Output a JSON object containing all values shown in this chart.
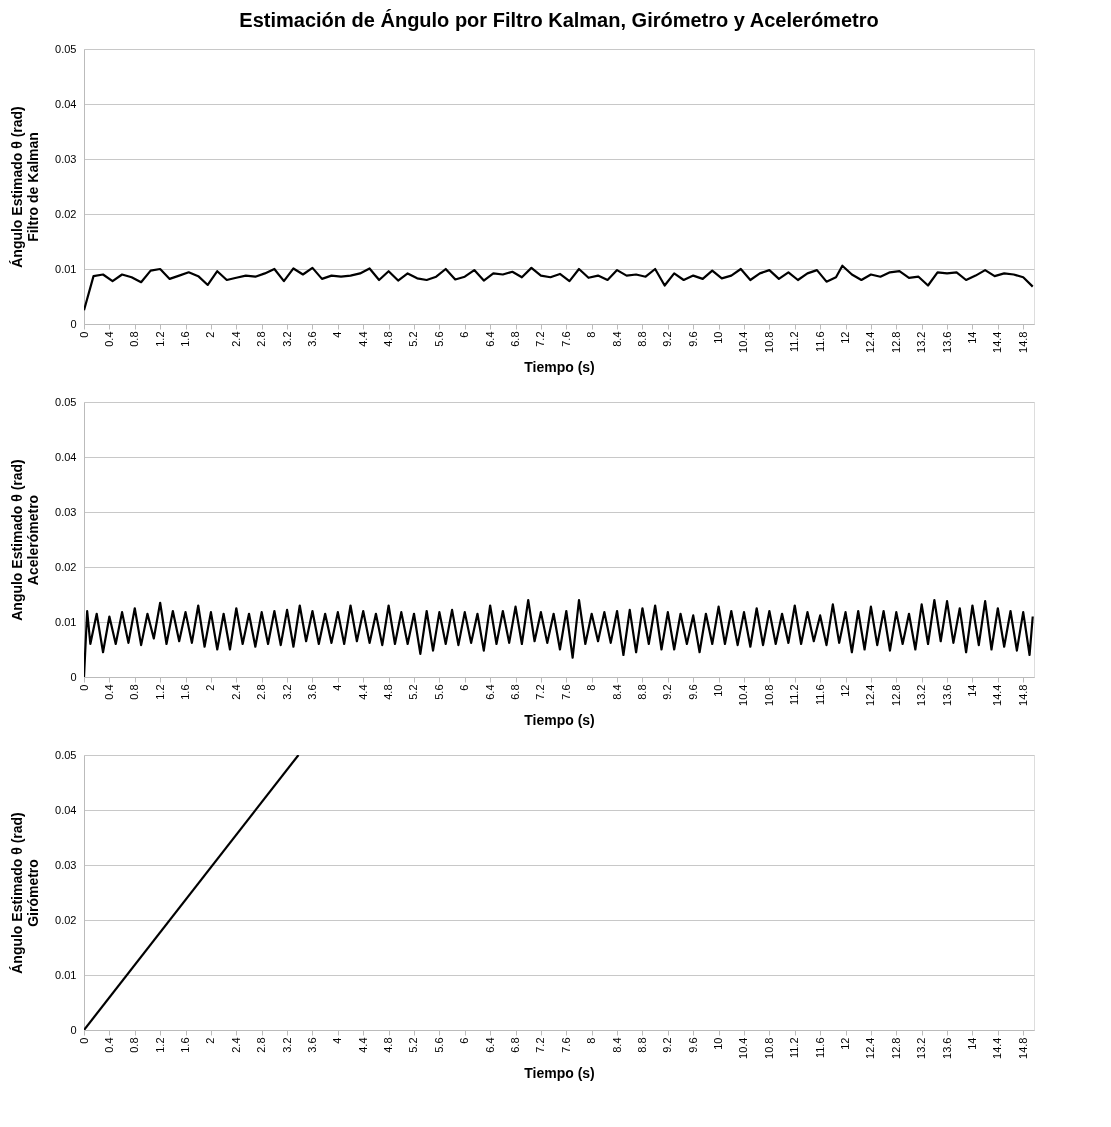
{
  "chart_data": [
    {
      "type": "line",
      "title": "Estimación de Ángulo por Filtro Kalman, Girómetro y Acelerómetro",
      "xlabel": "Tiempo (s)",
      "ylabel": "Ángulo Estimado θ (rad)\nFiltro de Kalman",
      "xlim": [
        0,
        14.97
      ],
      "ylim": [
        0,
        0.05
      ],
      "yticks": [
        0,
        0.01,
        0.02,
        0.03,
        0.04,
        0.05
      ],
      "xticks": [
        0,
        0.4,
        0.8,
        1.2,
        1.6,
        2,
        2.4,
        2.8,
        3.2,
        3.6,
        4,
        4.4,
        4.8,
        5.2,
        5.6,
        6,
        6.4,
        6.8,
        7.2,
        7.6,
        8,
        8.4,
        8.8,
        9.2,
        9.6,
        10,
        10.4,
        10.8,
        11.2,
        11.6,
        12,
        12.4,
        12.8,
        13.2,
        13.6,
        14,
        14.4,
        14.8
      ],
      "grid": "y",
      "series": [
        {
          "color": "#000000",
          "x": [
            0,
            0.15,
            0.3,
            0.45,
            0.6,
            0.75,
            0.9,
            1.05,
            1.2,
            1.35,
            1.5,
            1.65,
            1.8,
            1.95,
            2.1,
            2.25,
            2.4,
            2.55,
            2.7,
            2.85,
            3.0,
            3.15,
            3.3,
            3.45,
            3.6,
            3.75,
            3.9,
            4.05,
            4.2,
            4.35,
            4.5,
            4.65,
            4.8,
            4.95,
            5.1,
            5.25,
            5.4,
            5.55,
            5.7,
            5.85,
            6.0,
            6.15,
            6.3,
            6.45,
            6.6,
            6.75,
            6.9,
            7.05,
            7.2,
            7.35,
            7.5,
            7.65,
            7.8,
            7.95,
            8.1,
            8.25,
            8.4,
            8.55,
            8.7,
            8.85,
            9.0,
            9.15,
            9.3,
            9.45,
            9.6,
            9.75,
            9.9,
            10.05,
            10.2,
            10.35,
            10.5,
            10.65,
            10.8,
            10.95,
            11.1,
            11.25,
            11.4,
            11.55,
            11.7,
            11.85,
            11.95,
            12.1,
            12.25,
            12.4,
            12.55,
            12.7,
            12.85,
            13.0,
            13.15,
            13.3,
            13.45,
            13.6,
            13.75,
            13.9,
            14.05,
            14.2,
            14.35,
            14.5,
            14.65,
            14.8,
            14.95
          ],
          "values": [
            0.0025,
            0.0087,
            0.009,
            0.0078,
            0.009,
            0.0085,
            0.0076,
            0.0097,
            0.01,
            0.0082,
            0.0088,
            0.0094,
            0.0087,
            0.0071,
            0.0096,
            0.008,
            0.0084,
            0.0088,
            0.0086,
            0.0092,
            0.01,
            0.0078,
            0.0101,
            0.009,
            0.0102,
            0.0082,
            0.0088,
            0.0086,
            0.0088,
            0.0092,
            0.0101,
            0.008,
            0.0096,
            0.0079,
            0.0092,
            0.0083,
            0.008,
            0.0086,
            0.01,
            0.0081,
            0.0086,
            0.0098,
            0.0079,
            0.0092,
            0.009,
            0.0095,
            0.0085,
            0.0102,
            0.0088,
            0.0085,
            0.0091,
            0.0078,
            0.01,
            0.0084,
            0.0088,
            0.008,
            0.0098,
            0.0088,
            0.009,
            0.0086,
            0.01,
            0.007,
            0.0092,
            0.008,
            0.0088,
            0.0082,
            0.0097,
            0.0083,
            0.0088,
            0.01,
            0.008,
            0.0092,
            0.0098,
            0.0082,
            0.0094,
            0.008,
            0.0092,
            0.0098,
            0.0077,
            0.0085,
            0.0106,
            0.009,
            0.008,
            0.009,
            0.0086,
            0.0094,
            0.0096,
            0.0084,
            0.0086,
            0.007,
            0.0094,
            0.0092,
            0.0094,
            0.008,
            0.0088,
            0.0098,
            0.0087,
            0.0092,
            0.009,
            0.0085,
            0.0068
          ]
        }
      ]
    },
    {
      "type": "line",
      "xlabel": "Tiempo (s)",
      "ylabel": "Angulo Estimado θ (rad)\nAcelerómetro",
      "xlim": [
        0,
        14.97
      ],
      "ylim": [
        0,
        0.05
      ],
      "yticks": [
        0,
        0.01,
        0.02,
        0.03,
        0.04,
        0.05
      ],
      "xticks": [
        0,
        0.4,
        0.8,
        1.2,
        1.6,
        2,
        2.4,
        2.8,
        3.2,
        3.6,
        4,
        4.4,
        4.8,
        5.2,
        5.6,
        6,
        6.4,
        6.8,
        7.2,
        7.6,
        8,
        8.4,
        8.8,
        9.2,
        9.6,
        10,
        10.4,
        10.8,
        11.2,
        11.6,
        12,
        12.4,
        12.8,
        13.2,
        13.6,
        14,
        14.4,
        14.8
      ],
      "grid": "y",
      "series": [
        {
          "color": "#000000",
          "x": [
            0,
            0.05,
            0.1,
            0.2,
            0.3,
            0.4,
            0.5,
            0.6,
            0.7,
            0.8,
            0.9,
            1.0,
            1.1,
            1.2,
            1.3,
            1.4,
            1.5,
            1.6,
            1.7,
            1.8,
            1.9,
            2.0,
            2.1,
            2.2,
            2.3,
            2.4,
            2.5,
            2.6,
            2.7,
            2.8,
            2.9,
            3.0,
            3.1,
            3.2,
            3.3,
            3.4,
            3.5,
            3.6,
            3.7,
            3.8,
            3.9,
            4.0,
            4.1,
            4.2,
            4.3,
            4.4,
            4.5,
            4.6,
            4.7,
            4.8,
            4.9,
            5.0,
            5.1,
            5.2,
            5.3,
            5.4,
            5.5,
            5.6,
            5.7,
            5.8,
            5.9,
            6.0,
            6.1,
            6.2,
            6.3,
            6.4,
            6.5,
            6.6,
            6.7,
            6.8,
            6.9,
            7.0,
            7.1,
            7.2,
            7.3,
            7.4,
            7.5,
            7.6,
            7.7,
            7.8,
            7.9,
            8.0,
            8.1,
            8.2,
            8.3,
            8.4,
            8.5,
            8.6,
            8.7,
            8.8,
            8.9,
            9.0,
            9.1,
            9.2,
            9.3,
            9.4,
            9.5,
            9.6,
            9.7,
            9.8,
            9.9,
            10.0,
            10.1,
            10.2,
            10.3,
            10.4,
            10.5,
            10.6,
            10.7,
            10.8,
            10.9,
            11.0,
            11.1,
            11.2,
            11.3,
            11.4,
            11.5,
            11.6,
            11.7,
            11.8,
            11.9,
            12.0,
            12.1,
            12.2,
            12.3,
            12.4,
            12.5,
            12.6,
            12.7,
            12.8,
            12.9,
            13.0,
            13.1,
            13.2,
            13.3,
            13.4,
            13.5,
            13.6,
            13.7,
            13.8,
            13.9,
            14.0,
            14.1,
            14.2,
            14.3,
            14.4,
            14.5,
            14.6,
            14.7,
            14.8,
            14.9,
            14.95
          ],
          "values": [
            0,
            0.012,
            0.006,
            0.0115,
            0.0045,
            0.011,
            0.006,
            0.0118,
            0.0062,
            0.0125,
            0.0058,
            0.0115,
            0.007,
            0.0135,
            0.006,
            0.012,
            0.0065,
            0.0118,
            0.0062,
            0.013,
            0.0055,
            0.0118,
            0.005,
            0.0115,
            0.005,
            0.0125,
            0.006,
            0.0115,
            0.0055,
            0.0118,
            0.006,
            0.012,
            0.0058,
            0.0122,
            0.0055,
            0.013,
            0.0065,
            0.012,
            0.006,
            0.0115,
            0.0062,
            0.0118,
            0.006,
            0.013,
            0.0065,
            0.012,
            0.0062,
            0.0115,
            0.0058,
            0.013,
            0.006,
            0.0118,
            0.006,
            0.0115,
            0.0042,
            0.012,
            0.0048,
            0.0118,
            0.006,
            0.0122,
            0.0058,
            0.0118,
            0.0062,
            0.0115,
            0.0048,
            0.013,
            0.006,
            0.012,
            0.0062,
            0.0128,
            0.006,
            0.014,
            0.0065,
            0.0118,
            0.0062,
            0.0115,
            0.005,
            0.012,
            0.0035,
            0.014,
            0.006,
            0.0115,
            0.0065,
            0.0118,
            0.0062,
            0.012,
            0.004,
            0.0122,
            0.0045,
            0.0125,
            0.006,
            0.013,
            0.005,
            0.0118,
            0.005,
            0.0115,
            0.006,
            0.0112,
            0.0045,
            0.0115,
            0.006,
            0.0128,
            0.006,
            0.012,
            0.0058,
            0.0118,
            0.0055,
            0.0125,
            0.0058,
            0.012,
            0.006,
            0.0115,
            0.0062,
            0.013,
            0.006,
            0.0118,
            0.0065,
            0.0112,
            0.0058,
            0.0132,
            0.0062,
            0.0118,
            0.0045,
            0.012,
            0.005,
            0.0128,
            0.0058,
            0.012,
            0.0048,
            0.0118,
            0.006,
            0.0115,
            0.005,
            0.0132,
            0.006,
            0.014,
            0.0065,
            0.0138,
            0.0062,
            0.0125,
            0.0045,
            0.013,
            0.0058,
            0.0138,
            0.005,
            0.0125,
            0.0055,
            0.012,
            0.0048,
            0.0118,
            0.004,
            0.011
          ]
        }
      ]
    },
    {
      "type": "line",
      "xlabel": "Tiempo (s)",
      "ylabel": "Ángulo Estimado θ (rad)\nGirómetro",
      "xlim": [
        0,
        14.97
      ],
      "ylim": [
        0,
        0.05
      ],
      "yticks": [
        0,
        0.01,
        0.02,
        0.03,
        0.04,
        0.05
      ],
      "xticks": [
        0,
        0.4,
        0.8,
        1.2,
        1.6,
        2,
        2.4,
        2.8,
        3.2,
        3.6,
        4,
        4.4,
        4.8,
        5.2,
        5.6,
        6,
        6.4,
        6.8,
        7.2,
        7.6,
        8,
        8.4,
        8.8,
        9.2,
        9.6,
        10,
        10.4,
        10.8,
        11.2,
        11.6,
        12,
        12.4,
        12.8,
        13.2,
        13.6,
        14,
        14.4,
        14.8
      ],
      "grid": "y",
      "series": [
        {
          "color": "#000000",
          "x": [
            0,
            3.38
          ],
          "values": [
            0,
            0.05
          ]
        }
      ]
    }
  ]
}
